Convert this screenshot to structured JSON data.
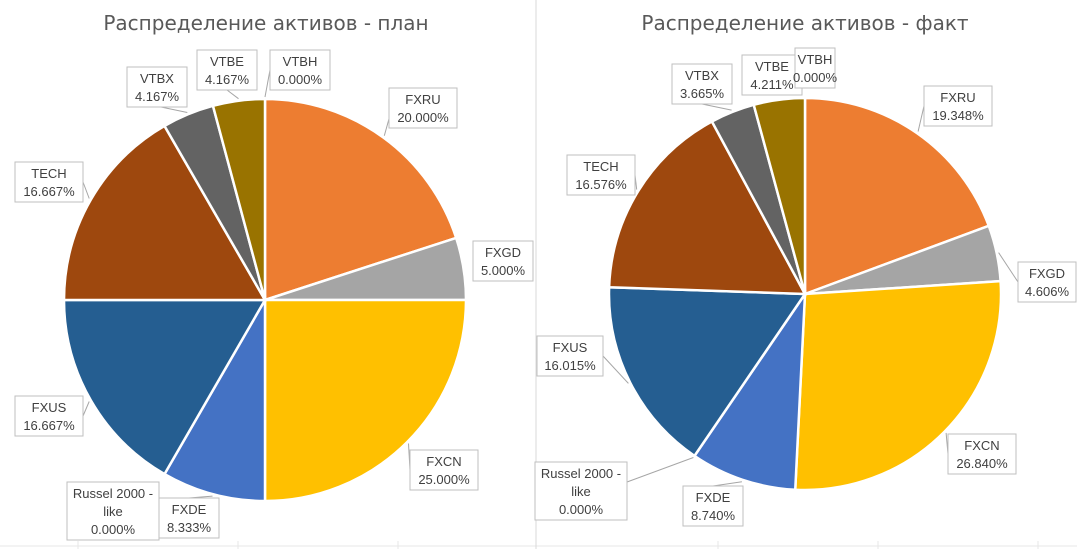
{
  "chart_data": [
    {
      "type": "pie",
      "title": "Распределение активов - план",
      "slices": [
        {
          "name": "FXRU",
          "value": 20.0,
          "label": "20.000%",
          "color": "#ED7D31"
        },
        {
          "name": "FXGD",
          "value": 5.0,
          "label": "5.000%",
          "color": "#A5A5A5"
        },
        {
          "name": "FXCN",
          "value": 25.0,
          "label": "25.000%",
          "color": "#FFC000"
        },
        {
          "name": "FXDE",
          "value": 8.333,
          "label": "8.333%",
          "color": "#4472C4"
        },
        {
          "name": "Russel 2000 - like",
          "value": 0.0,
          "label": "0.000%",
          "color": "#70AD47"
        },
        {
          "name": "FXUS",
          "value": 16.667,
          "label": "16.667%",
          "color": "#255E91"
        },
        {
          "name": "TECH",
          "value": 16.667,
          "label": "16.667%",
          "color": "#9E480E"
        },
        {
          "name": "VTBX",
          "value": 4.167,
          "label": "4.167%",
          "color": "#636363"
        },
        {
          "name": "VTBE",
          "value": 4.167,
          "label": "4.167%",
          "color": "#997300"
        },
        {
          "name": "VTBH",
          "value": 0.0,
          "label": "0.000%",
          "color": "#264478"
        }
      ]
    },
    {
      "type": "pie",
      "title": "Распределение активов - факт",
      "slices": [
        {
          "name": "FXRU",
          "value": 19.348,
          "label": "19.348%",
          "color": "#ED7D31"
        },
        {
          "name": "FXGD",
          "value": 4.606,
          "label": "4.606%",
          "color": "#A5A5A5"
        },
        {
          "name": "FXCN",
          "value": 26.84,
          "label": "26.840%",
          "color": "#FFC000"
        },
        {
          "name": "FXDE",
          "value": 8.74,
          "label": "8.740%",
          "color": "#4472C4"
        },
        {
          "name": "Russel 2000 - like",
          "value": 0.0,
          "label": "0.000%",
          "color": "#70AD47"
        },
        {
          "name": "FXUS",
          "value": 16.015,
          "label": "16.015%",
          "color": "#255E91"
        },
        {
          "name": "TECH",
          "value": 16.576,
          "label": "16.576%",
          "color": "#9E480E"
        },
        {
          "name": "VTBX",
          "value": 3.665,
          "label": "3.665%",
          "color": "#636363"
        },
        {
          "name": "VTBE",
          "value": 4.211,
          "label": "4.211%",
          "color": "#997300"
        },
        {
          "name": "VTBH",
          "value": 0.0,
          "label": "0.000%",
          "color": "#264478"
        }
      ]
    }
  ]
}
